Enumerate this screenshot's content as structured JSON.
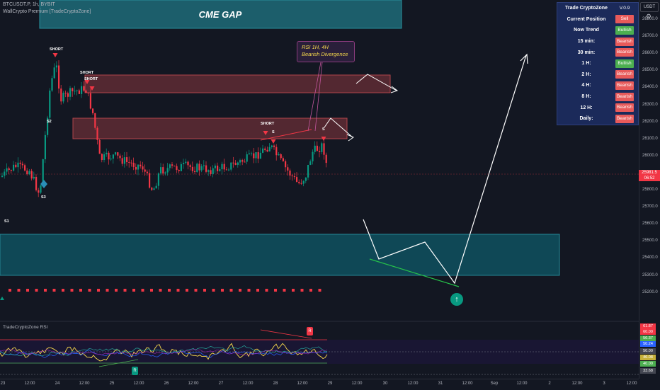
{
  "chart": {
    "symbol_line": "BTCUSDT.P, 1h, BYBIT",
    "indicator_line": "WallCrypto Premium [TradeCryptoZone]",
    "cme_gap_label": "CME GAP",
    "rsi_note_line1": "RSI 1H, 4H",
    "rsi_note_line2": "Bearish Divergence",
    "current_price": "25981.5",
    "countdown": "06:52",
    "currency": "USDT",
    "price_ticks": [
      "26800.0",
      "26700.0",
      "26600.0",
      "26500.0",
      "26400.0",
      "26300.0",
      "26200.0",
      "26100.0",
      "26000.0",
      "25900.0",
      "25800.0",
      "25700.0",
      "25600.0",
      "25500.0",
      "25400.0",
      "25300.0",
      "25200.0"
    ],
    "time_ticks": [
      "23",
      "12:00",
      "24",
      "12:00",
      "25",
      "12:00",
      "26",
      "12:00",
      "27",
      "12:00",
      "28",
      "12:00",
      "29",
      "12:00",
      "30",
      "12:00",
      "31",
      "12:00",
      "Sep",
      "12:00",
      "2",
      "12:00",
      "3",
      "12:00"
    ],
    "signals": [
      "SHORT",
      "SHORT",
      "SHORT",
      "SHORT",
      "S",
      "S",
      "S1",
      "S2",
      "S3"
    ],
    "colors": {
      "background": "#131722",
      "bull": "#089981",
      "bear": "#f23645",
      "cme_box": "#2ba6b3",
      "short_zone": "#c24a50",
      "white_path": "#ffffff",
      "green_line": "#26c24a"
    }
  },
  "rsi": {
    "legend": "TradeCryptoZone RSI",
    "badge_top": "R",
    "badge_bottom": "R",
    "tags": [
      "61.87",
      "60.00",
      "56.37",
      "50.24",
      "50.00",
      "46.08",
      "40.00",
      "33.68"
    ],
    "tag_colors": [
      "#f23645",
      "#f23645",
      "#4caf50",
      "#2962ff",
      "#434651",
      "#c6b13a",
      "#4caf50",
      "#434651"
    ]
  },
  "panel": {
    "title": "Trade CryptoZone",
    "version": "V.0.9",
    "rows": [
      {
        "label": "Current Position",
        "value": "Sell",
        "style": "sell"
      },
      {
        "label": "Now Trend",
        "value": "Bullish",
        "style": "bull"
      },
      {
        "label": "15 min:",
        "value": "Bearish",
        "style": "bear"
      },
      {
        "label": "30 min:",
        "value": "Bearish",
        "style": "bear"
      },
      {
        "label": "1 H:",
        "value": "Bullish",
        "style": "bull"
      },
      {
        "label": "2 H:",
        "value": "Bearish",
        "style": "bear"
      },
      {
        "label": "4 H:",
        "value": "Bearish",
        "style": "bear"
      },
      {
        "label": "8 H:",
        "value": "Bearish",
        "style": "bear"
      },
      {
        "label": "12 H:",
        "value": "Bearish",
        "style": "bear"
      },
      {
        "label": "Daily:",
        "value": "Bearish",
        "style": "bear"
      }
    ]
  }
}
